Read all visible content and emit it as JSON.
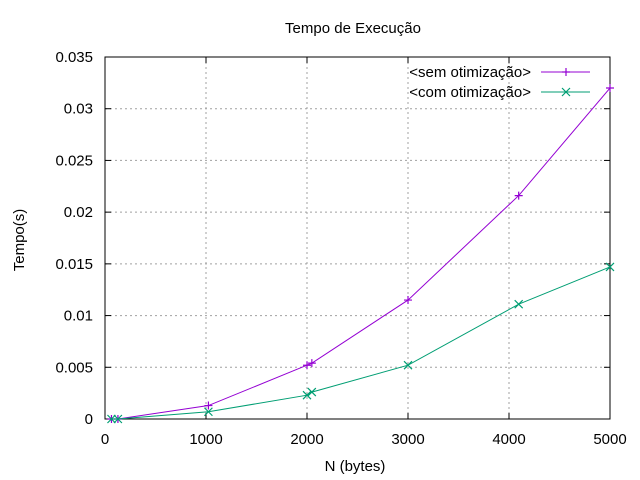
{
  "chart_data": {
    "type": "line",
    "title": "Tempo de Execução",
    "xlabel": "N (bytes)",
    "ylabel": "Tempo(s)",
    "xlim": [
      0,
      5000
    ],
    "ylim": [
      0,
      0.035
    ],
    "xticks": [
      0,
      1000,
      2000,
      3000,
      4000,
      5000
    ],
    "xtick_labels": [
      "0",
      "1000",
      "2000",
      "3000",
      "4000",
      "5000"
    ],
    "yticks": [
      0,
      0.005,
      0.01,
      0.015,
      0.02,
      0.025,
      0.03,
      0.035
    ],
    "ytick_labels": [
      "0",
      "0.005",
      "0.01",
      "0.015",
      "0.02",
      "0.025",
      "0.03",
      "0.035"
    ],
    "grid": true,
    "legend_position": "top-right",
    "series": [
      {
        "name": "<sem otimização>",
        "color": "#9400d3",
        "marker": "plus",
        "x": [
          64,
          128,
          1024,
          2000,
          2048,
          3000,
          4096,
          5000
        ],
        "y": [
          0.0,
          0.0,
          0.0013,
          0.0052,
          0.0054,
          0.0115,
          0.0216,
          0.032
        ]
      },
      {
        "name": "<com otimização>",
        "color": "#009e73",
        "marker": "cross",
        "x": [
          64,
          128,
          1024,
          2000,
          2048,
          3000,
          4096,
          5000
        ],
        "y": [
          0.0,
          0.0,
          0.0007,
          0.0023,
          0.0026,
          0.0052,
          0.0111,
          0.0147
        ]
      }
    ]
  }
}
